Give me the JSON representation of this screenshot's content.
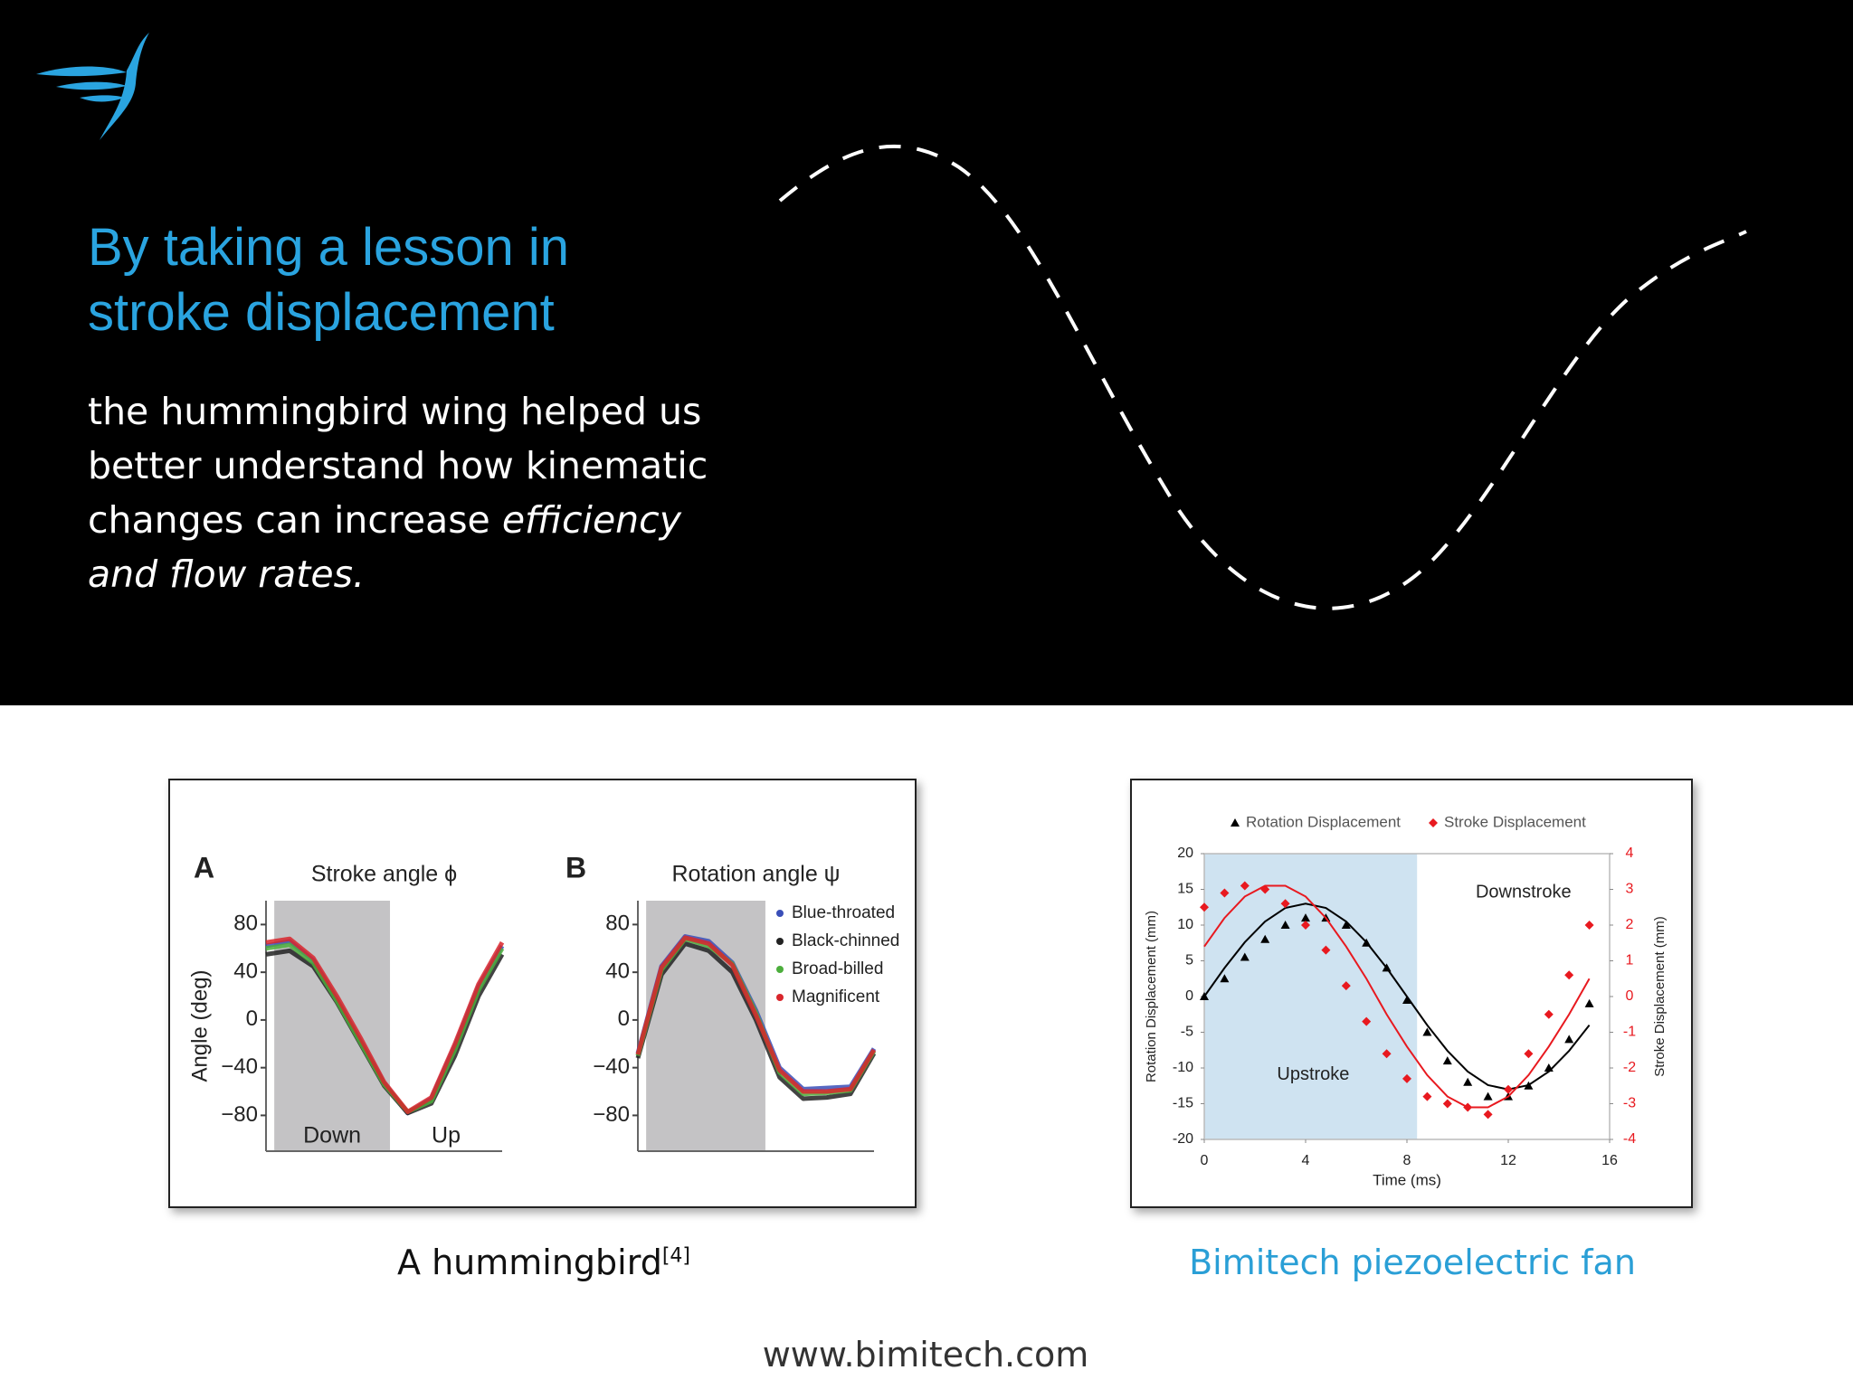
{
  "header": {
    "title": "By taking a lesson in stroke displacement",
    "paragraph": [
      "the hummingbird wing helped us better understand how kinematic changes can increase ",
      "efficiency and flow rates."
    ]
  },
  "figures": [
    {
      "caption": "A hummingbird",
      "caption_ref": "[4]",
      "chart_data": [
        {
          "type": "line",
          "label": "A",
          "title": "Stroke angle ϕ",
          "ylabel": "Angle (deg)",
          "x": [
            0,
            0.1,
            0.2,
            0.3,
            0.4,
            0.5,
            0.6,
            0.7,
            0.8,
            0.9,
            1
          ],
          "xlim": [
            0,
            1
          ],
          "ylim": [
            -110,
            100
          ],
          "yticks": [
            80,
            40,
            0,
            {
              "value": -40,
              "label": "−40"
            },
            {
              "value": -80,
              "label": "−80"
            }
          ],
          "shade": [
            0.035,
            0.525
          ],
          "shade_labels": [
            "Down",
            "Up"
          ],
          "series": [
            {
              "color": "#3a4fb8",
              "values": [
                62,
                66,
                50,
                17,
                -18,
                -53,
                -78,
                -66,
                -22,
                28,
                62
              ]
            },
            {
              "color": "#222222",
              "values": [
                55,
                58,
                45,
                15,
                -20,
                -55,
                -78,
                -70,
                -30,
                20,
                55
              ]
            },
            {
              "color": "#4cae3c",
              "values": [
                60,
                63,
                48,
                16,
                -19,
                -54,
                -77,
                -68,
                -25,
                25,
                60
              ]
            },
            {
              "color": "#d9262c",
              "values": [
                65,
                68,
                52,
                20,
                -15,
                -52,
                -77,
                -65,
                -20,
                30,
                65
              ]
            }
          ]
        },
        {
          "type": "line",
          "label": "B",
          "title": "Rotation angle ψ",
          "x": [
            0,
            0.1,
            0.2,
            0.3,
            0.4,
            0.5,
            0.6,
            0.7,
            0.8,
            0.9,
            1
          ],
          "xlim": [
            0,
            1
          ],
          "ylim": [
            -110,
            100
          ],
          "yticks": [
            80,
            40,
            0,
            {
              "value": -40,
              "label": "−40"
            },
            {
              "value": -80,
              "label": "−80"
            }
          ],
          "shade": [
            0.035,
            0.54
          ],
          "legend": "upper right",
          "series": [
            {
              "name": "Blue-throated",
              "color": "#3a4fb8",
              "values": [
                -28,
                45,
                70,
                66,
                48,
                8,
                -40,
                -58,
                -57,
                -56,
                -24
              ]
            },
            {
              "name": "Black-chinned",
              "color": "#222222",
              "values": [
                -32,
                38,
                64,
                58,
                40,
                0,
                -48,
                -66,
                -65,
                -62,
                -28
              ]
            },
            {
              "name": "Broad-billed",
              "color": "#4cae3c",
              "values": [
                -30,
                42,
                68,
                62,
                47,
                6,
                -44,
                -62,
                -61,
                -59,
                -26
              ]
            },
            {
              "name": "Magnificent",
              "color": "#d9262c",
              "values": [
                -29,
                44,
                69,
                64,
                46,
                4,
                -42,
                -60,
                -60,
                -58,
                -25
              ]
            }
          ]
        }
      ]
    },
    {
      "caption": "Bimitech piezoelectric fan",
      "chart_data": {
        "type": "scatter",
        "xlabel": "Time (ms)",
        "ylabel": "Rotation Displacement (mm)",
        "y2label": "Stroke Displacement (mm)",
        "x": [
          0,
          0.8,
          1.6,
          2.4,
          3.2,
          4,
          4.8,
          5.6,
          6.4,
          7.2,
          8,
          8.8,
          9.6,
          10.4,
          11.2,
          12,
          12.8,
          13.6,
          14.4,
          15.2
        ],
        "xlim": [
          0,
          16
        ],
        "xticks": [
          0,
          4,
          8,
          12,
          16
        ],
        "ylim": [
          -20,
          20
        ],
        "yticks": [
          20,
          15,
          10,
          5,
          0,
          -5,
          -10,
          -15,
          -20
        ],
        "y2lim": [
          -4,
          4
        ],
        "y2ticks": [
          4,
          3,
          2,
          1,
          0,
          -1,
          -2,
          -3,
          -4
        ],
        "shade": [
          0,
          8.4
        ],
        "shade_labels": [
          "Upstroke",
          "Downstroke"
        ],
        "series": [
          {
            "name": "Rotation Displacement",
            "color": "#000000",
            "marker": "triangle",
            "axis": "y",
            "values": [
              0,
              2.5,
              5.5,
              8,
              10,
              11,
              11,
              10,
              7.5,
              4,
              -0.5,
              -5,
              -9,
              -12,
              -14,
              -14,
              -12.5,
              -10,
              -6,
              -1
            ],
            "fit": [
              0,
              4.0,
              7.6,
              10.5,
              12.4,
              13,
              12.4,
              10.5,
              7.6,
              4.0,
              0,
              -4.0,
              -7.6,
              -10.5,
              -12.4,
              -13,
              -12.4,
              -10.5,
              -7.6,
              -4.0
            ]
          },
          {
            "name": "Stroke Displacement",
            "color": "#e8191f",
            "marker": "diamond",
            "axis": "y2",
            "values": [
              2.5,
              2.9,
              3.1,
              3.0,
              2.6,
              2.0,
              1.3,
              0.3,
              -0.7,
              -1.6,
              -2.3,
              -2.8,
              -3.0,
              -3.1,
              -3.3,
              -2.6,
              -1.6,
              -0.5,
              0.6,
              2.0
            ],
            "fit": [
              1.4,
              2.2,
              2.8,
              3.1,
              3.1,
              2.8,
              2.2,
              1.4,
              0.5,
              -0.5,
              -1.4,
              -2.2,
              -2.8,
              -3.1,
              -3.1,
              -2.8,
              -2.2,
              -1.4,
              -0.5,
              0.5
            ]
          }
        ]
      }
    }
  ],
  "footer": "www.bimitech.com"
}
